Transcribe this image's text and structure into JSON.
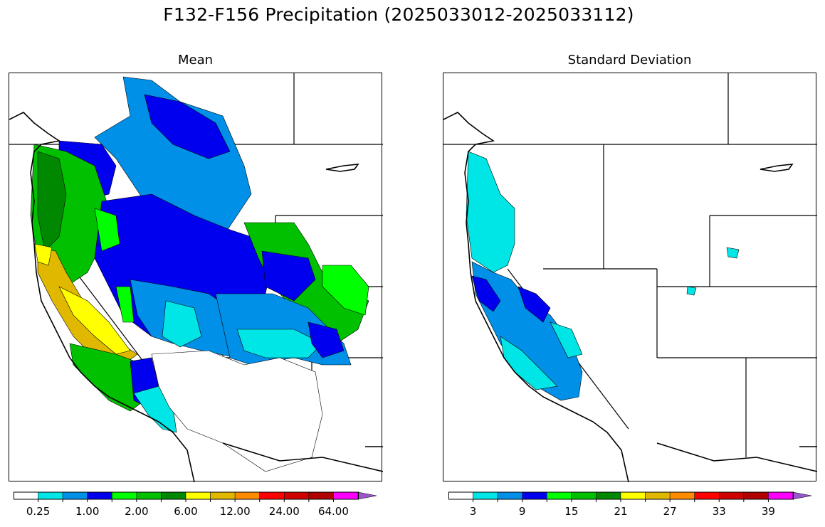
{
  "figure": {
    "title": "F132-F156 Precipitation (2025033012-2025033112)"
  },
  "panels": [
    {
      "id": "mean",
      "title": "Mean",
      "colorbar": {
        "colors": [
          "#ffffff",
          "#00e5e5",
          "#0090e8",
          "#0000ee",
          "#00ff00",
          "#00c000",
          "#008800",
          "#ffff00",
          "#e0b800",
          "#ff8c00",
          "#ff0000",
          "#d00000",
          "#b00000",
          "#ff00ff",
          "#9955cc"
        ],
        "tick_labels": [
          "0.25",
          "1.00",
          "2.00",
          "6.00",
          "12.00",
          "24.00",
          "64.00"
        ],
        "label_every": 2,
        "label_start": 1
      }
    },
    {
      "id": "stddev",
      "title": "Standard Deviation",
      "colorbar": {
        "colors": [
          "#ffffff",
          "#00e5e5",
          "#0090e8",
          "#0000ee",
          "#00ff00",
          "#00c000",
          "#008800",
          "#ffff00",
          "#e0b800",
          "#ff8c00",
          "#ff0000",
          "#d00000",
          "#b00000",
          "#ff00ff",
          "#9955cc"
        ],
        "tick_labels": [
          "3",
          "9",
          "15",
          "21",
          "27",
          "33",
          "39"
        ],
        "label_every": 2,
        "label_start": 1
      }
    }
  ]
}
